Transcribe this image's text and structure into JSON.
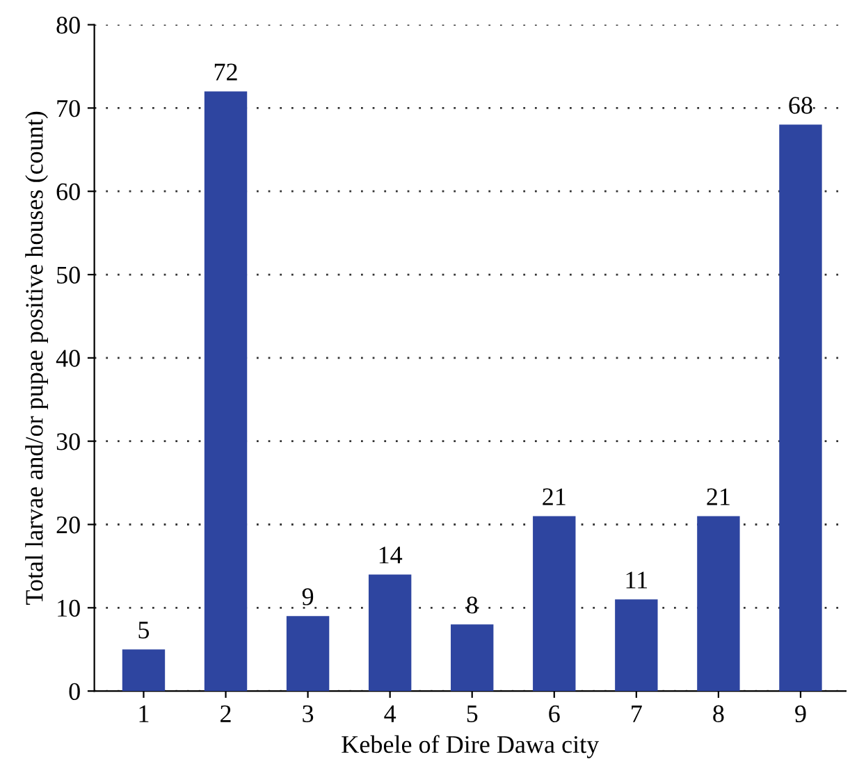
{
  "chart_data": {
    "type": "bar",
    "xlabel": "Kebele of Dire Dawa city",
    "ylabel": "Total larvae and/or pupae positive houses (count)",
    "categories": [
      "1",
      "2",
      "3",
      "4",
      "5",
      "6",
      "7",
      "8",
      "9"
    ],
    "values": [
      5,
      72,
      9,
      14,
      8,
      21,
      11,
      21,
      68
    ],
    "color": "#2e45a0",
    "ylim": [
      0,
      80
    ],
    "yticks": [
      0,
      10,
      20,
      30,
      40,
      50,
      60,
      70,
      80
    ],
    "grid": "y",
    "data_labels": true
  }
}
